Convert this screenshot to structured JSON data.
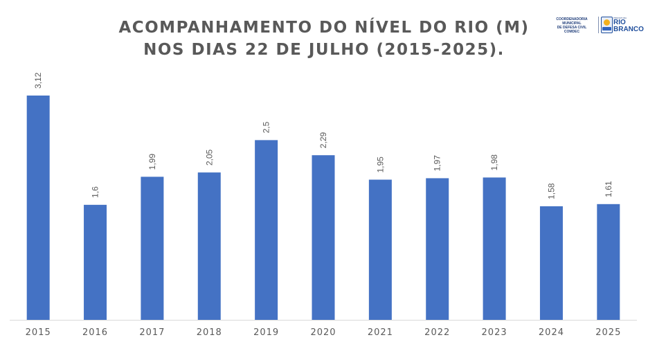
{
  "logo": {
    "left_line1": "COORDENADORIA MUNICIPAL",
    "left_line2": "DE DEFESA CIVIL",
    "left_line3": "COMDEC",
    "right_line1": "RIO",
    "right_line2": "BRANCO",
    "right_small": "PREFEITURA"
  },
  "chart_data": {
    "type": "bar",
    "title": [
      "ACOMPANHAMENTO DO NÍVEL DO RIO (M)",
      "NOS DIAS 22 DE JULHO (2015-2025)."
    ],
    "categories": [
      "2015",
      "2016",
      "2017",
      "2018",
      "2019",
      "2020",
      "2021",
      "2022",
      "2023",
      "2024",
      "2025"
    ],
    "values": [
      3.12,
      1.6,
      1.99,
      2.05,
      2.5,
      2.29,
      1.95,
      1.97,
      1.98,
      1.58,
      1.61
    ],
    "value_labels": [
      "3,12",
      "1,6",
      "1,99",
      "2,05",
      "2,5",
      "2,29",
      "1,95",
      "1,97",
      "1,98",
      "1,58",
      "1,61"
    ],
    "ylim": [
      0,
      3.12
    ],
    "bar_color": "#4472c4",
    "grid": false,
    "legend": "none"
  }
}
